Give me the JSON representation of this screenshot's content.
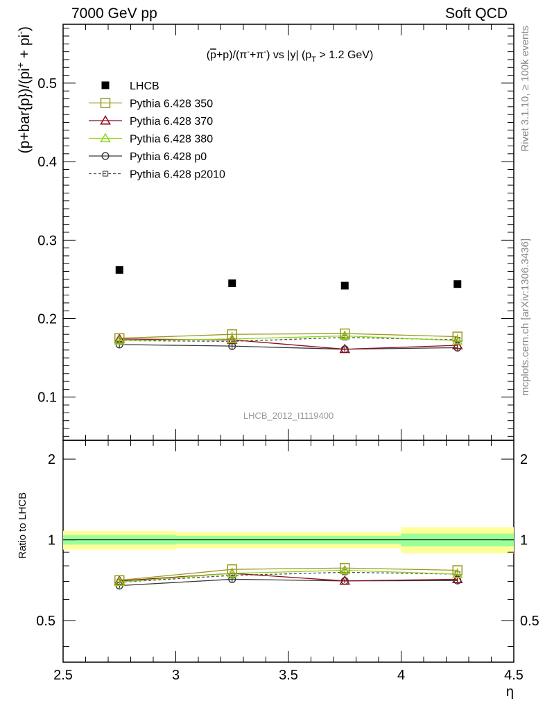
{
  "header": {
    "left": "7000 GeV pp",
    "right": "Soft QCD"
  },
  "side_labels": {
    "rivet": "Rivet 3.1.10, ≥ 100k events",
    "mcplots": "mcplots.cern.ch [arXiv:1306.3436]"
  },
  "chart_data": [
    {
      "type": "scatter",
      "title": "(p̅+p)/(π⁻+π⁺) vs |y| (p_T > 1.2 GeV)",
      "title_parts": {
        "a": "(",
        "pbar": "p",
        "b": "+p)/(π",
        "sup1": "-",
        "c": "+π",
        "sup2": "-",
        "d": ") vs |y| (p",
        "sub": "T",
        "e": " > 1.2 GeV)"
      },
      "ylabel": "(p+bar{p})/(pi⁺ + pi⁻)",
      "ylabel_parts": {
        "main": "(p+bar{p})/(pi",
        "sup1": "+",
        "mid": " + pi",
        "sup2": "-",
        "end": ")"
      },
      "xlim": [
        2.5,
        4.5
      ],
      "ylim": [
        0.045,
        0.575
      ],
      "yticks": [
        0.1,
        0.2,
        0.3,
        0.4,
        0.5
      ],
      "ytick_labels": [
        "0.1",
        "0.2",
        "0.3",
        "0.4",
        "0.5"
      ],
      "watermark": "LHCB_2012_I1119400",
      "legend_position": "top-left",
      "x": [
        2.75,
        3.25,
        3.75,
        4.25
      ],
      "x_bins": [
        [
          2.5,
          3.0
        ],
        [
          3.0,
          3.5
        ],
        [
          3.5,
          4.0
        ],
        [
          4.0,
          4.5
        ]
      ],
      "series": [
        {
          "name": "LHCB",
          "color": "#000000",
          "marker": "filled-square",
          "line": "none",
          "values": [
            0.262,
            0.245,
            0.242,
            0.244
          ],
          "errors": [
            0.001,
            0.001,
            0.001,
            0.001
          ]
        },
        {
          "name": "Pythia 6.428 350",
          "color": "#999a1e",
          "marker": "open-square",
          "line": "solid",
          "values": [
            0.175,
            0.18,
            0.181,
            0.177
          ],
          "errors": [
            0.003,
            0.003,
            0.003,
            0.003
          ]
        },
        {
          "name": "Pythia 6.428 370",
          "color": "#8b0d1f",
          "marker": "open-triangle",
          "line": "solid",
          "values": [
            0.174,
            0.173,
            0.161,
            0.166
          ],
          "errors": [
            0.003,
            0.003,
            0.003,
            0.004
          ]
        },
        {
          "name": "Pythia 6.428 380",
          "color": "#8fd61c",
          "marker": "open-triangle",
          "line": "solid",
          "values": [
            0.172,
            0.174,
            0.178,
            0.172
          ],
          "errors": [
            0.003,
            0.003,
            0.003,
            0.003
          ]
        },
        {
          "name": "Pythia 6.428 p0",
          "color": "#3a3a3a",
          "marker": "open-circle",
          "line": "solid",
          "values": [
            0.167,
            0.165,
            0.161,
            0.163
          ],
          "errors": [
            0.004,
            0.004,
            0.003,
            0.005
          ]
        },
        {
          "name": "Pythia 6.428 p2010",
          "color": "#4d4d4d",
          "marker": "open-small-square",
          "line": "dashed",
          "values": [
            0.172,
            0.171,
            0.176,
            0.173
          ],
          "errors": [
            0.003,
            0.003,
            0.003,
            0.003
          ]
        }
      ]
    },
    {
      "type": "scatter",
      "ylabel": "Ratio to LHCB",
      "xlabel": "η",
      "xlim": [
        2.5,
        4.5
      ],
      "ylim": [
        0.35,
        2.35
      ],
      "log_y": true,
      "yticks": [
        0.5,
        1,
        2
      ],
      "ytick_labels": [
        "0.5",
        "1",
        "2"
      ],
      "xticks": [
        2.5,
        3,
        3.5,
        4,
        4.5
      ],
      "xtick_labels": [
        "2.5",
        "3",
        "3.5",
        "4",
        "4.5"
      ],
      "uncertainty_bands": {
        "stat_color": "#99ff99",
        "total_color": "#ffff99",
        "stat": [
          [
            0.96,
            1.04
          ],
          [
            0.965,
            1.035
          ],
          [
            0.965,
            1.035
          ],
          [
            0.945,
            1.055
          ]
        ],
        "total": [
          [
            0.92,
            1.08
          ],
          [
            0.93,
            1.07
          ],
          [
            0.93,
            1.07
          ],
          [
            0.89,
            1.115
          ]
        ]
      },
      "x": [
        2.75,
        3.25,
        3.75,
        4.25
      ],
      "series": [
        {
          "name": "Pythia 6.428 350",
          "values": [
            0.707,
            0.776,
            0.785,
            0.77
          ],
          "errors": [
            0.012,
            0.012,
            0.012,
            0.012
          ]
        },
        {
          "name": "Pythia 6.428 370",
          "values": [
            0.703,
            0.75,
            0.703,
            0.713
          ],
          "errors": [
            0.012,
            0.012,
            0.012,
            0.015
          ]
        },
        {
          "name": "Pythia 6.428 380",
          "values": [
            0.696,
            0.75,
            0.77,
            0.745
          ],
          "errors": [
            0.012,
            0.012,
            0.012,
            0.012
          ]
        },
        {
          "name": "Pythia 6.428 p0",
          "values": [
            0.675,
            0.713,
            0.703,
            0.705
          ],
          "errors": [
            0.015,
            0.015,
            0.012,
            0.02
          ]
        },
        {
          "name": "Pythia 6.428 p2010",
          "values": [
            0.695,
            0.737,
            0.757,
            0.745
          ],
          "errors": [
            0.012,
            0.012,
            0.012,
            0.012
          ]
        }
      ]
    }
  ]
}
